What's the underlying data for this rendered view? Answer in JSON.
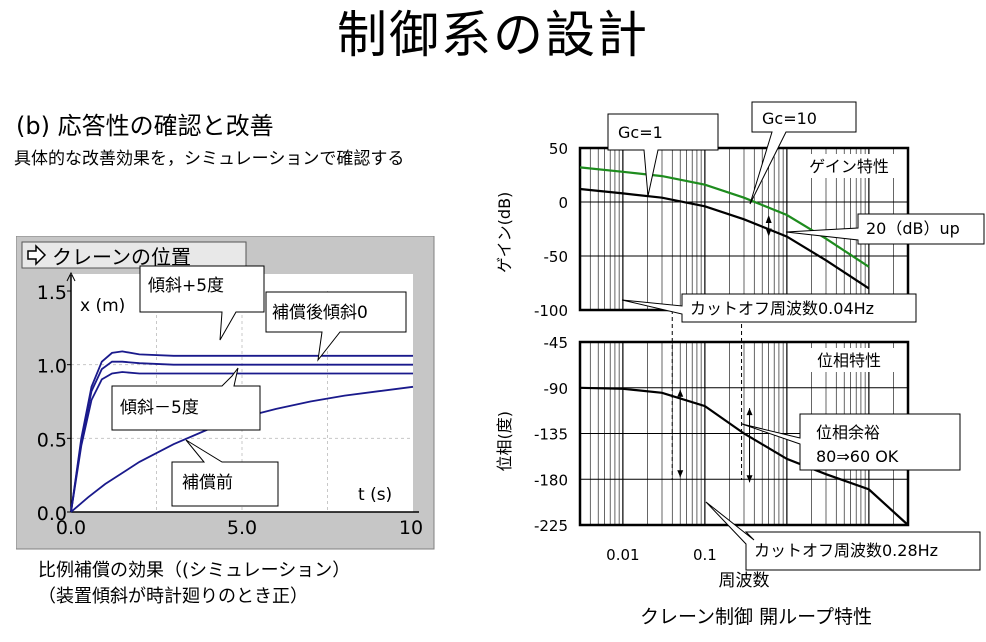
{
  "slide": {
    "title": "制御系の設計",
    "subtitle": "(b) 応答性の確認と改善",
    "description": "具体的な改善効果を，シミュレーションで確認する",
    "left_caption_1": "比例補償の効果（(シミュレーション）",
    "left_caption_2": "（装置傾斜が時計廻りのとき正）",
    "right_caption": "クレーン制御  開ループ特性"
  },
  "sim": {
    "window_title": "クレーンの位置",
    "icon": "arrow-right-icon",
    "ylabel": "x (m)",
    "xlabel": "t (s)",
    "bg_color": "#c6c6c6",
    "plot_color": "#ffffff",
    "line_color": "#1a1a8c",
    "callouts": {
      "tilt_plus": "傾斜+5度",
      "comp_zero": "補償後傾斜0",
      "tilt_minus": "傾斜－5度",
      "before": "補償前"
    }
  },
  "bode": {
    "callouts": {
      "gc1": "Gc=1",
      "gc10": "Gc=10",
      "up": "20（dB）up",
      "cut1": "カットオフ周波数0.04Hz",
      "margin1": "位相余裕",
      "margin2": "80⇒60 OK",
      "cut2": "カットオフ周波数0.28Hz"
    },
    "gain_label": "ゲイン特性",
    "phase_label": "位相特性",
    "gain_ylabel": "ゲイン(dB)",
    "phase_ylabel": "位相(度)",
    "xlabel": "周波数",
    "green": "#1e8c1e"
  },
  "chart_data": [
    {
      "type": "line",
      "title": "クレーンの位置",
      "xlabel": "t (s)",
      "ylabel": "x (m)",
      "xlim": [
        0,
        10
      ],
      "ylim": [
        0,
        1.5
      ],
      "xticks": [
        "0.0",
        "5.0",
        "10"
      ],
      "yticks": [
        "0.0",
        "0.5",
        "1.0",
        "1.5"
      ],
      "grid": true,
      "series": [
        {
          "name": "傾斜+5度",
          "x": [
            0,
            0.3,
            0.6,
            0.9,
            1.2,
            1.5,
            2,
            3,
            4,
            6,
            8,
            10
          ],
          "y": [
            0,
            0.5,
            0.85,
            1.02,
            1.08,
            1.09,
            1.07,
            1.06,
            1.06,
            1.06,
            1.06,
            1.06
          ]
        },
        {
          "name": "補償後傾斜0",
          "x": [
            0,
            0.3,
            0.6,
            0.9,
            1.2,
            1.5,
            2,
            3,
            4,
            6,
            8,
            10
          ],
          "y": [
            0,
            0.48,
            0.82,
            0.97,
            1.02,
            1.02,
            1.01,
            1.0,
            1.0,
            1.0,
            1.0,
            1.0
          ]
        },
        {
          "name": "傾斜－5度",
          "x": [
            0,
            0.3,
            0.6,
            0.9,
            1.2,
            1.5,
            2,
            3,
            4,
            6,
            8,
            10
          ],
          "y": [
            0,
            0.45,
            0.76,
            0.9,
            0.94,
            0.95,
            0.94,
            0.94,
            0.94,
            0.94,
            0.94,
            0.94
          ]
        },
        {
          "name": "補償前",
          "x": [
            0,
            0.5,
            1,
            2,
            3,
            4,
            5,
            6,
            7,
            8,
            9,
            10
          ],
          "y": [
            0,
            0.1,
            0.19,
            0.34,
            0.46,
            0.56,
            0.64,
            0.7,
            0.75,
            0.79,
            0.82,
            0.85
          ]
        }
      ]
    },
    {
      "type": "line",
      "title": "ゲイン特性",
      "xlabel": "周波数",
      "ylabel": "ゲイン(dB)",
      "xscale": "log",
      "xlim": [
        0.003,
        30
      ],
      "ylim": [
        -100,
        50
      ],
      "yticks": [
        50,
        0,
        -50,
        -100
      ],
      "series": [
        {
          "name": "Gc=10",
          "x": [
            0.003,
            0.01,
            0.03,
            0.1,
            0.3,
            1,
            3,
            10
          ],
          "y": [
            32,
            28,
            24,
            16,
            4,
            -12,
            -34,
            -60
          ]
        },
        {
          "name": "Gc=1",
          "x": [
            0.003,
            0.01,
            0.03,
            0.1,
            0.3,
            1,
            3,
            10
          ],
          "y": [
            12,
            8,
            4,
            -4,
            -16,
            -32,
            -54,
            -80
          ]
        }
      ]
    },
    {
      "type": "line",
      "title": "位相特性",
      "xlabel": "周波数",
      "ylabel": "位相(度)",
      "xscale": "log",
      "xlim": [
        0.003,
        30
      ],
      "ylim": [
        -225,
        -45
      ],
      "xticks": [
        "0.01",
        "0.1"
      ],
      "yticks": [
        -45,
        -90,
        -135,
        -180,
        -225
      ],
      "series": [
        {
          "name": "phase",
          "x": [
            0.003,
            0.01,
            0.03,
            0.1,
            0.3,
            1,
            3,
            10,
            30
          ],
          "y": [
            -90,
            -91,
            -95,
            -108,
            -135,
            -160,
            -175,
            -190,
            -225
          ]
        }
      ]
    }
  ]
}
